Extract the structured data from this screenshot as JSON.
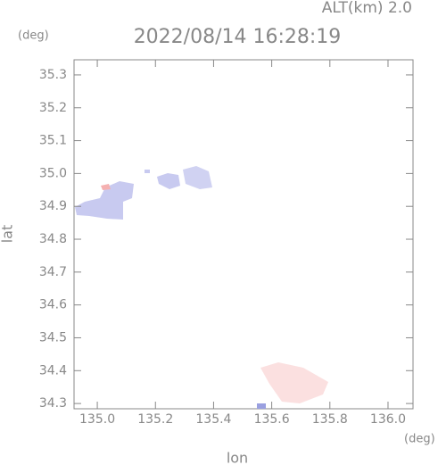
{
  "chart_data": {
    "type": "map",
    "title": "2022/08/14 16:28:19",
    "altitude_label": "ALT(km) 2.0",
    "x_label": "lon",
    "y_label": "lat",
    "x_unit": "(deg)",
    "y_unit": "(deg)",
    "xlim": [
      134.92,
      136.086
    ],
    "ylim": [
      34.284,
      35.346
    ],
    "xticks": [
      {
        "value": 135.0,
        "label": "135.0"
      },
      135.2,
      135.4,
      135.6,
      135.8,
      {
        "value": 136.0,
        "label": "136.0"
      }
    ],
    "yticks": [
      34.3,
      34.4,
      34.5,
      34.6,
      34.7,
      34.8,
      34.9,
      {
        "value": 35.0,
        "label": "35.0"
      },
      35.1,
      35.2,
      35.3
    ]
  }
}
